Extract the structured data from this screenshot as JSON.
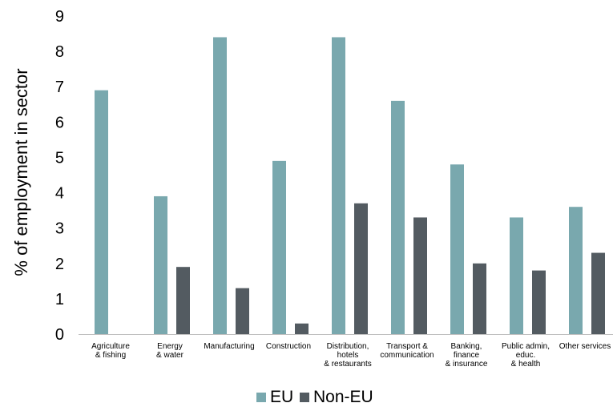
{
  "chart_data": {
    "type": "bar",
    "ylabel": "% of employment in sector",
    "xlabel": "",
    "ylim": [
      0,
      9
    ],
    "yticks": [
      "0",
      "1",
      "2",
      "3",
      "4",
      "5",
      "6",
      "7",
      "8",
      "9"
    ],
    "grid": false,
    "legend_position": "bottom",
    "categories": [
      [
        "Agriculture",
        "& fishing"
      ],
      [
        "Energy",
        "& water"
      ],
      [
        "Manufacturing"
      ],
      [
        "Construction"
      ],
      [
        "Distribution,",
        "hotels",
        "& restaurants"
      ],
      [
        "Transport &",
        "communication"
      ],
      [
        "Banking,",
        "finance",
        "& insurance"
      ],
      [
        "Public admin,",
        "educ.",
        "& health"
      ],
      [
        "Other services"
      ]
    ],
    "series": [
      {
        "name": "EU",
        "color": "#79a8ae",
        "values": [
          6.9,
          3.9,
          8.4,
          4.9,
          8.4,
          6.6,
          4.8,
          3.3,
          3.6
        ]
      },
      {
        "name": "Non-EU",
        "color": "#535b61",
        "values": [
          0,
          1.9,
          1.3,
          0.3,
          3.7,
          3.3,
          2.0,
          1.8,
          2.3
        ]
      }
    ]
  }
}
